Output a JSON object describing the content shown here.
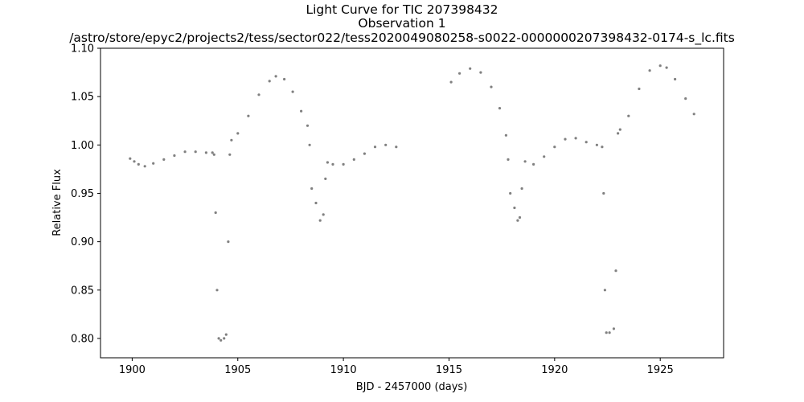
{
  "chart_data": {
    "type": "scatter",
    "title_lines": [
      "Light Curve for TIC 207398432",
      "Observation 1",
      "/astro/store/epyc2/projects2/tess/sector022/tess2020049080258-s0022-0000000207398432-0174-s_lc.fits"
    ],
    "xlabel": "BJD - 2457000 (days)",
    "ylabel": "Relative Flux",
    "xlim": [
      1898.5,
      1928.0
    ],
    "ylim": [
      0.78,
      1.1
    ],
    "xticks": [
      1900,
      1905,
      1910,
      1915,
      1920,
      1925
    ],
    "yticks": [
      0.8,
      0.85,
      0.9,
      0.95,
      1.0,
      1.05,
      1.1
    ],
    "xtick_labels": [
      "1900",
      "1905",
      "1910",
      "1915",
      "1920",
      "1925"
    ],
    "ytick_labels": [
      "0.80",
      "0.85",
      "0.90",
      "0.95",
      "1.00",
      "1.05",
      "1.10"
    ],
    "grid": false,
    "marker_color": "#808080",
    "series": [
      {
        "x": [
          1899.9,
          1900.1,
          1900.3,
          1900.6,
          1901.0,
          1901.5,
          1902.0,
          1902.5,
          1903.0,
          1903.5,
          1903.8,
          1903.88,
          1903.95,
          1904.02,
          1904.1,
          1904.2,
          1904.35,
          1904.45,
          1904.55,
          1904.62,
          1904.7,
          1905.0,
          1905.5,
          1906.0,
          1906.5,
          1906.8,
          1907.2,
          1907.6,
          1908.0,
          1908.3,
          1908.4,
          1908.5,
          1908.7,
          1908.9,
          1909.05,
          1909.15,
          1909.25,
          1909.5,
          1910.0,
          1910.5,
          1911.0,
          1911.5,
          1912.0,
          1912.5
        ],
        "y": [
          0.986,
          0.983,
          0.98,
          0.978,
          0.981,
          0.985,
          0.989,
          0.993,
          0.993,
          0.992,
          0.992,
          0.99,
          0.93,
          0.85,
          0.8,
          0.798,
          0.8,
          0.804,
          0.9,
          0.99,
          1.005,
          1.012,
          1.03,
          1.052,
          1.066,
          1.071,
          1.068,
          1.055,
          1.035,
          1.02,
          1.0,
          0.955,
          0.94,
          0.922,
          0.928,
          0.965,
          0.982,
          0.98,
          0.98,
          0.985,
          0.991,
          0.998,
          1.0,
          0.998
        ]
      },
      {
        "x": [
          1915.1,
          1915.5,
          1916.0,
          1916.5,
          1917.0,
          1917.4,
          1917.7,
          1917.8,
          1917.9,
          1918.1,
          1918.25,
          1918.35,
          1918.45,
          1918.6,
          1919.0,
          1919.5,
          1920.0,
          1920.5,
          1921.0,
          1921.5,
          1922.0,
          1922.25,
          1922.32,
          1922.38,
          1922.45,
          1922.6,
          1922.8,
          1922.9,
          1923.0,
          1923.1,
          1923.5,
          1924.0,
          1924.5,
          1925.0,
          1925.3,
          1925.7,
          1926.2,
          1926.6
        ],
        "y": [
          1.065,
          1.074,
          1.079,
          1.075,
          1.06,
          1.038,
          1.01,
          0.985,
          0.95,
          0.935,
          0.922,
          0.925,
          0.955,
          0.983,
          0.98,
          0.988,
          0.998,
          1.006,
          1.007,
          1.003,
          1.0,
          0.998,
          0.95,
          0.85,
          0.806,
          0.806,
          0.81,
          0.87,
          1.012,
          1.016,
          1.03,
          1.058,
          1.077,
          1.082,
          1.08,
          1.068,
          1.048,
          1.032
        ]
      }
    ]
  }
}
